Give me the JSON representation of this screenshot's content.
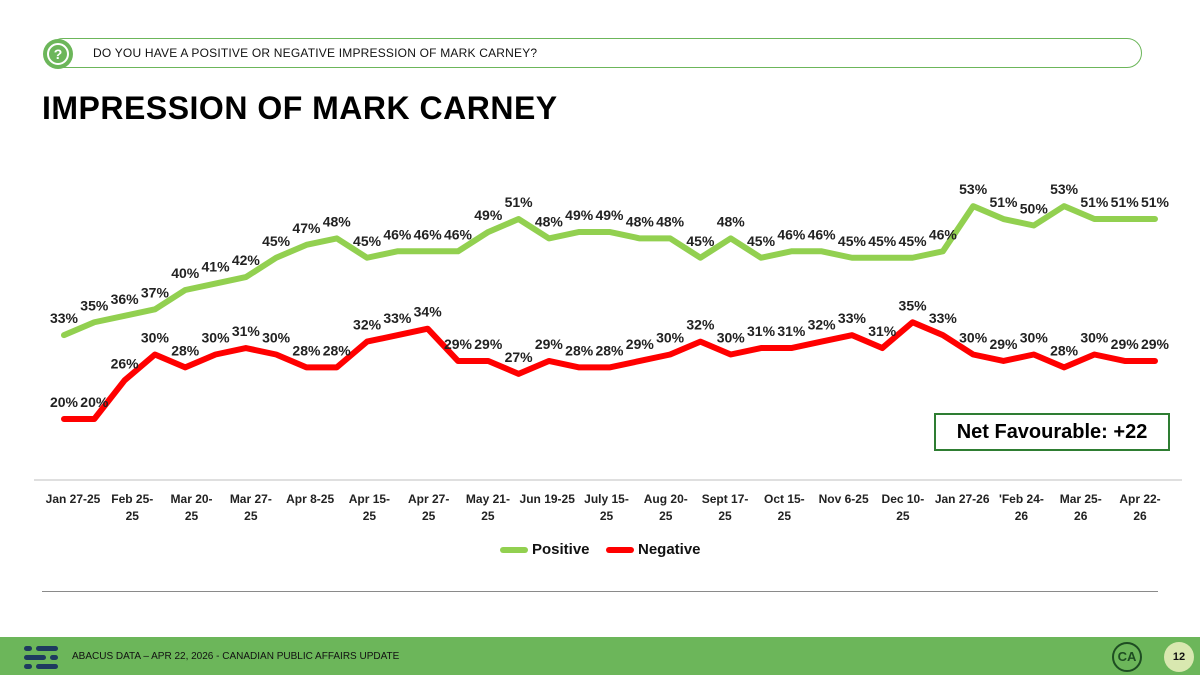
{
  "question": "DO YOU HAVE A POSITIVE OR NEGATIVE IMPRESSION OF MARK CARNEY?",
  "title": "IMPRESSION OF MARK CARNEY",
  "net_favourable": "Net Favourable: +22",
  "footer": "ABACUS DATA – APR 22, 2026 - CANADIAN PUBLIC AFFAIRS UPDATE",
  "ca_logo": "CA",
  "page_number": "12",
  "colors": {
    "positive": "#92d050",
    "negative": "#ff0000",
    "footer": "#6cb65a",
    "accent": "#2e7d32"
  },
  "icons": [
    "question-icon",
    "abacus-logo-icon",
    "ca-logo-icon"
  ],
  "chart_data": {
    "type": "line",
    "x_ticks": [
      [
        "Jan 27-25"
      ],
      [
        "Feb 25-",
        "25"
      ],
      [
        "Mar 20-",
        "25"
      ],
      [
        "Mar 27-",
        "25"
      ],
      [
        "Apr 8-25"
      ],
      [
        "Apr 15-",
        "25"
      ],
      [
        "Apr 27-",
        "25"
      ],
      [
        "May 21-",
        "25"
      ],
      [
        "Jun 19-25"
      ],
      [
        "July 15-",
        "25"
      ],
      [
        "Aug 20-",
        "25"
      ],
      [
        "Sept 17-",
        "25"
      ],
      [
        "Oct 15-",
        "25"
      ],
      [
        "Nov 6-25"
      ],
      [
        "Dec 10-",
        "25"
      ],
      [
        "Jan 27-26"
      ],
      [
        "'Feb 24-",
        "26"
      ],
      [
        "Mar 25-",
        "26"
      ],
      [
        "Apr 22-",
        "26"
      ]
    ],
    "series": [
      {
        "name": "Positive",
        "values": [
          33,
          35,
          36,
          37,
          40,
          41,
          42,
          45,
          47,
          48,
          45,
          46,
          46,
          46,
          49,
          51,
          48,
          49,
          49,
          48,
          48,
          45,
          48,
          45,
          46,
          46,
          45,
          45,
          45,
          46,
          53,
          51,
          50,
          53,
          51,
          51,
          51
        ]
      },
      {
        "name": "Negative",
        "values": [
          20,
          20,
          26,
          30,
          28,
          30,
          31,
          30,
          28,
          28,
          32,
          33,
          34,
          29,
          29,
          27,
          29,
          28,
          28,
          29,
          30,
          32,
          30,
          31,
          31,
          32,
          33,
          31,
          35,
          33,
          30,
          29,
          30,
          28,
          30,
          29,
          29
        ]
      }
    ]
  }
}
